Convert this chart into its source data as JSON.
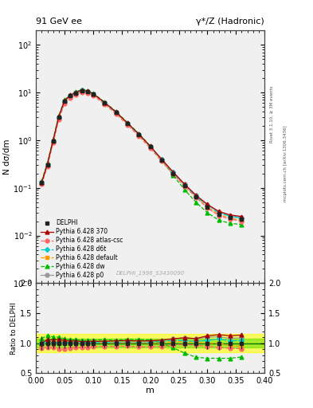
{
  "title_left": "91 GeV ee",
  "title_right": "γ*/Z (Hadronic)",
  "ylabel_main": "N dσ/dm",
  "ylabel_ratio": "Ratio to DELPHI",
  "xlabel": "m",
  "watermark": "DELPHI_1996_S3430090",
  "right_label1": "Rivet 3.1.10, ≥ 3M events",
  "right_label2": "mcplots.cern.ch [arXiv:1306.3436]",
  "x": [
    0.01,
    0.02,
    0.03,
    0.04,
    0.05,
    0.06,
    0.07,
    0.08,
    0.09,
    0.1,
    0.12,
    0.14,
    0.16,
    0.18,
    0.2,
    0.22,
    0.24,
    0.26,
    0.28,
    0.3,
    0.32,
    0.34,
    0.36
  ],
  "delphi_y": [
    0.13,
    0.3,
    0.95,
    3.0,
    6.5,
    8.5,
    9.8,
    11.0,
    10.5,
    9.2,
    6.0,
    3.8,
    2.2,
    1.3,
    0.72,
    0.38,
    0.2,
    0.11,
    0.065,
    0.04,
    0.028,
    0.024,
    0.022
  ],
  "delphi_yerr": [
    0.015,
    0.03,
    0.08,
    0.25,
    0.5,
    0.6,
    0.7,
    0.7,
    0.7,
    0.65,
    0.4,
    0.25,
    0.15,
    0.09,
    0.05,
    0.028,
    0.015,
    0.009,
    0.005,
    0.004,
    0.003,
    0.002,
    0.002
  ],
  "p370_y": [
    0.13,
    0.32,
    1.0,
    3.2,
    6.8,
    8.8,
    10.2,
    11.3,
    10.8,
    9.5,
    6.2,
    3.95,
    2.3,
    1.35,
    0.75,
    0.4,
    0.215,
    0.12,
    0.07,
    0.045,
    0.032,
    0.027,
    0.025
  ],
  "atlas_csc_y": [
    0.12,
    0.28,
    0.88,
    2.7,
    5.9,
    7.8,
    9.1,
    10.2,
    9.8,
    8.7,
    5.7,
    3.6,
    2.1,
    1.22,
    0.68,
    0.36,
    0.195,
    0.108,
    0.063,
    0.038,
    0.026,
    0.022,
    0.02
  ],
  "d6t_y": [
    0.13,
    0.31,
    0.96,
    3.05,
    6.6,
    8.6,
    10.0,
    11.1,
    10.6,
    9.3,
    6.1,
    3.85,
    2.25,
    1.32,
    0.73,
    0.39,
    0.21,
    0.115,
    0.067,
    0.042,
    0.03,
    0.025,
    0.023
  ],
  "default_y": [
    0.13,
    0.31,
    0.96,
    3.05,
    6.55,
    8.55,
    9.9,
    11.0,
    10.5,
    9.25,
    6.05,
    3.82,
    2.22,
    1.31,
    0.72,
    0.38,
    0.205,
    0.113,
    0.066,
    0.04,
    0.028,
    0.023,
    0.021
  ],
  "dw_y": [
    0.14,
    0.34,
    1.05,
    3.3,
    7.0,
    9.0,
    10.4,
    11.5,
    11.0,
    9.7,
    6.35,
    4.0,
    2.35,
    1.38,
    0.76,
    0.38,
    0.185,
    0.092,
    0.05,
    0.03,
    0.021,
    0.018,
    0.017
  ],
  "p0_y": [
    0.13,
    0.31,
    0.97,
    3.05,
    6.6,
    8.6,
    10.0,
    11.1,
    10.6,
    9.3,
    6.1,
    3.85,
    2.25,
    1.32,
    0.74,
    0.395,
    0.215,
    0.12,
    0.07,
    0.044,
    0.031,
    0.026,
    0.024
  ],
  "colors": {
    "delphi": "#222222",
    "p370": "#aa0000",
    "atlas_csc": "#ff6666",
    "d6t": "#00cccc",
    "default": "#ff9900",
    "dw": "#00bb00",
    "p0": "#999999"
  },
  "band_yellow": [
    0.85,
    1.15
  ],
  "band_green": [
    0.93,
    1.07
  ],
  "xlim": [
    0.0,
    0.4
  ],
  "ylim_main": [
    0.001,
    200.0
  ],
  "ylim_ratio": [
    0.5,
    2.0
  ],
  "bg_color": "#f0f0f0"
}
